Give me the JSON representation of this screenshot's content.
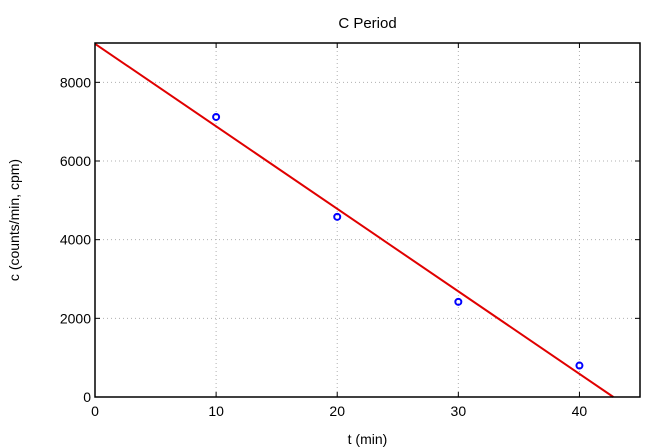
{
  "chart_data": {
    "type": "scatter",
    "title": "C Period",
    "xlabel": "t (min)",
    "ylabel": "c (counts/min, cpm)",
    "xlim": [
      0,
      45
    ],
    "ylim": [
      0,
      9000
    ],
    "x_ticks": [
      0,
      10,
      20,
      30,
      40
    ],
    "y_ticks": [
      0,
      2000,
      4000,
      6000,
      8000
    ],
    "grid": true,
    "series": [
      {
        "type": "scatter",
        "color": "#0000ff",
        "marker": "circle-open",
        "x": [
          10,
          20,
          30,
          40
        ],
        "y": [
          7120,
          4580,
          2420,
          800
        ]
      },
      {
        "type": "line",
        "color": "#e00000",
        "x": [
          0,
          42.8
        ],
        "y": [
          8980,
          0
        ]
      }
    ]
  }
}
